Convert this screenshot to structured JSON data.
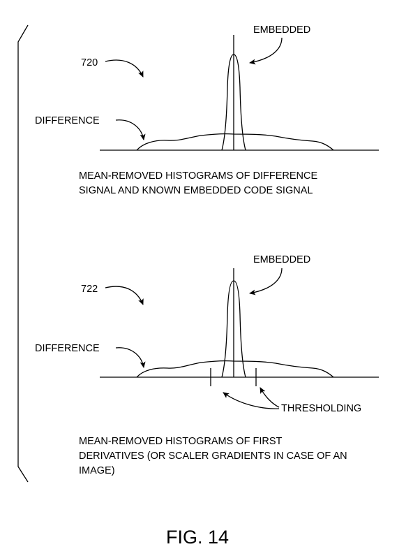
{
  "panel_top": {
    "ref_number": "720",
    "embedded_label": "EMBEDDED",
    "difference_label": "DIFFERENCE",
    "caption_line1": "MEAN-REMOVED HISTOGRAMS OF DIFFERENCE",
    "caption_line2": "SIGNAL AND KNOWN EMBEDDED CODE SIGNAL"
  },
  "panel_bottom": {
    "ref_number": "722",
    "embedded_label": "EMBEDDED",
    "difference_label": "DIFFERENCE",
    "thresholding_label": "THRESHOLDING",
    "caption_line1": "MEAN-REMOVED HISTOGRAMS OF FIRST",
    "caption_line2": "DERIVATIVES (OR SCALER GRADIENTS IN CASE OF AN",
    "caption_line3": "IMAGE)"
  },
  "figure_label": "FIG. 14"
}
